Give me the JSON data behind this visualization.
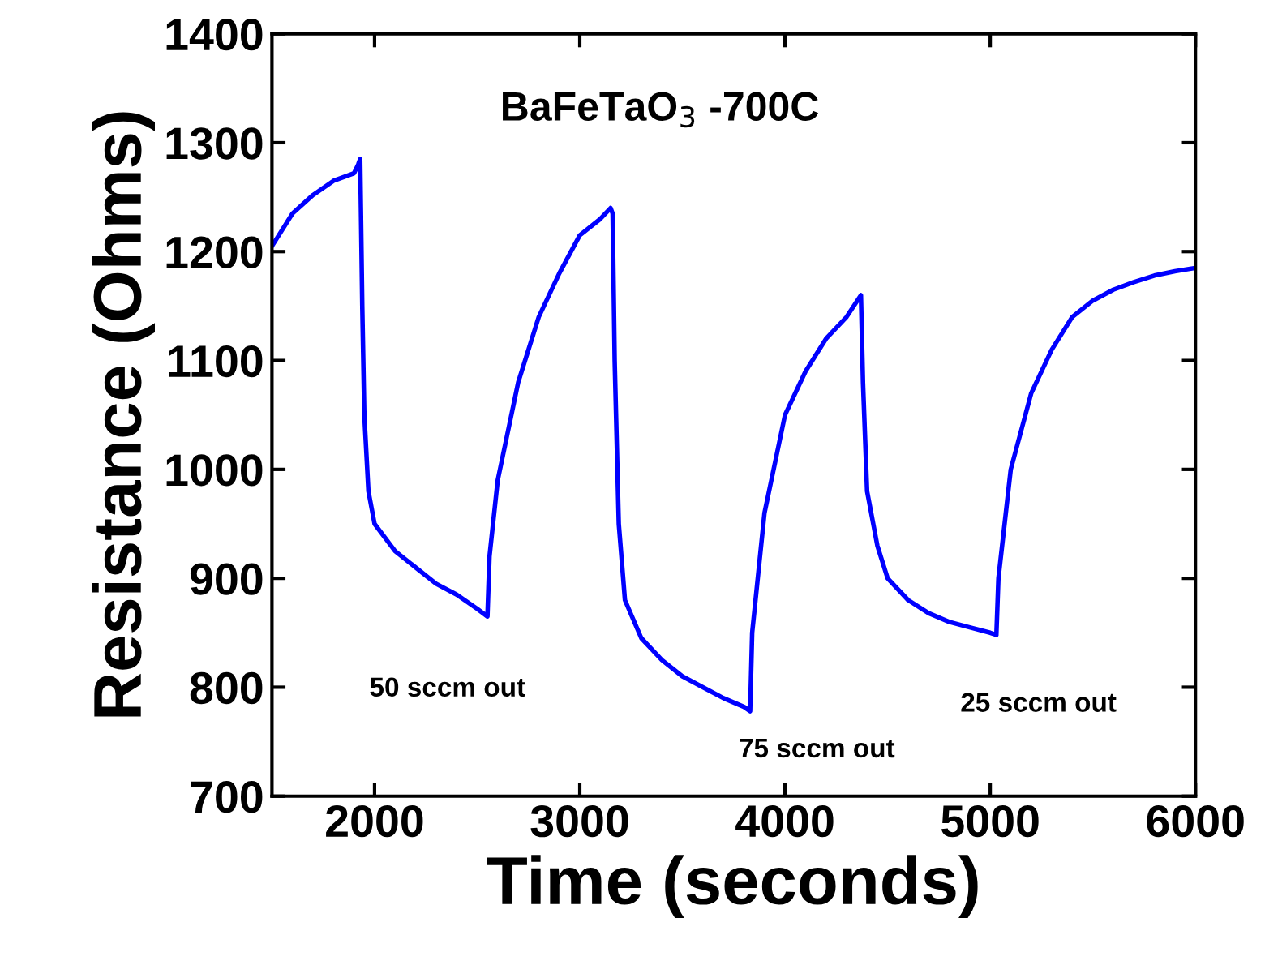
{
  "chart_data": {
    "type": "line",
    "xlabel": "Time (seconds)",
    "ylabel": "Resistance (Ohms)",
    "xlim": [
      1500,
      6000
    ],
    "xticks": [
      2000,
      3000,
      4000,
      5000,
      6000
    ],
    "ylim": [
      700,
      1400
    ],
    "yticks": [
      700,
      800,
      900,
      1000,
      1100,
      1200,
      1300,
      1400
    ],
    "grid": false,
    "legend": false,
    "marker": "none",
    "line_style": "solid",
    "series": [
      {
        "color": "#0000ff",
        "x": [
          1500,
          1600,
          1700,
          1800,
          1900,
          1920,
          1930,
          1940,
          1950,
          1970,
          2000,
          2100,
          2200,
          2300,
          2400,
          2500,
          2550,
          2560,
          2600,
          2700,
          2800,
          2900,
          3000,
          3100,
          3150,
          3160,
          3170,
          3190,
          3220,
          3300,
          3400,
          3500,
          3600,
          3700,
          3800,
          3830,
          3840,
          3900,
          4000,
          4100,
          4200,
          4300,
          4370,
          4380,
          4400,
          4450,
          4500,
          4600,
          4700,
          4800,
          4900,
          5000,
          5030,
          5040,
          5100,
          5200,
          5300,
          5400,
          5500,
          5600,
          5700,
          5800,
          5900,
          6000
        ],
        "values": [
          1205,
          1235,
          1252,
          1265,
          1272,
          1280,
          1285,
          1150,
          1050,
          980,
          950,
          925,
          910,
          895,
          885,
          872,
          865,
          920,
          990,
          1080,
          1140,
          1180,
          1215,
          1230,
          1240,
          1235,
          1100,
          950,
          880,
          845,
          825,
          810,
          800,
          790,
          782,
          778,
          850,
          960,
          1050,
          1090,
          1120,
          1140,
          1160,
          1080,
          980,
          930,
          900,
          880,
          868,
          860,
          855,
          850,
          848,
          900,
          1000,
          1070,
          1110,
          1140,
          1155,
          1165,
          1172,
          1178,
          1182,
          1185
        ]
      }
    ],
    "annotations": [
      "BaFeTaO$_{3}$ -700C",
      "50 sccm out",
      "75 sccm out",
      "25 sccm out"
    ]
  }
}
